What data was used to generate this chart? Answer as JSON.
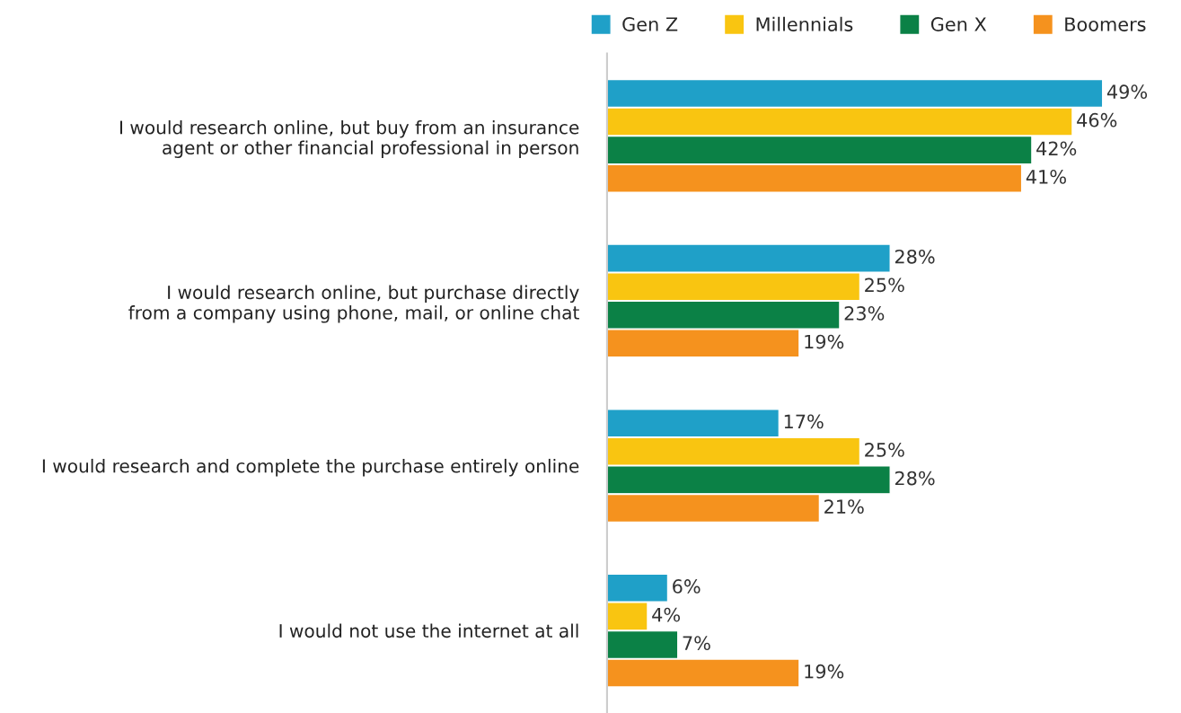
{
  "chart_data": {
    "type": "bar",
    "orientation": "horizontal",
    "categories": [
      "I would research online, but buy from an insurance\nagent or other financial professional in person",
      "I would research online, but purchase directly\nfrom a company using phone, mail, or online chat",
      "I would research and complete the purchase entirely online",
      "I would not use the internet at all"
    ],
    "series": [
      {
        "name": "Gen Z",
        "color": "#1fa0c8",
        "values": [
          49,
          28,
          17,
          6
        ],
        "value_labels": [
          "49%",
          "28%",
          "17%",
          "6%"
        ]
      },
      {
        "name": "Millennials",
        "color": "#f9c511",
        "values": [
          46,
          25,
          25,
          4
        ],
        "value_labels": [
          "46%",
          "25%",
          "25%",
          "4%"
        ]
      },
      {
        "name": "Gen X",
        "color": "#0b8146",
        "values": [
          42,
          23,
          28,
          7
        ],
        "value_labels": [
          "42%",
          "23%",
          "28%",
          "7%"
        ]
      },
      {
        "name": "Boomers",
        "color": "#f5921e",
        "values": [
          41,
          19,
          21,
          19
        ],
        "value_labels": [
          "41%",
          "19%",
          "21%",
          "19%"
        ]
      }
    ],
    "legend": "top right",
    "grid": false
  }
}
